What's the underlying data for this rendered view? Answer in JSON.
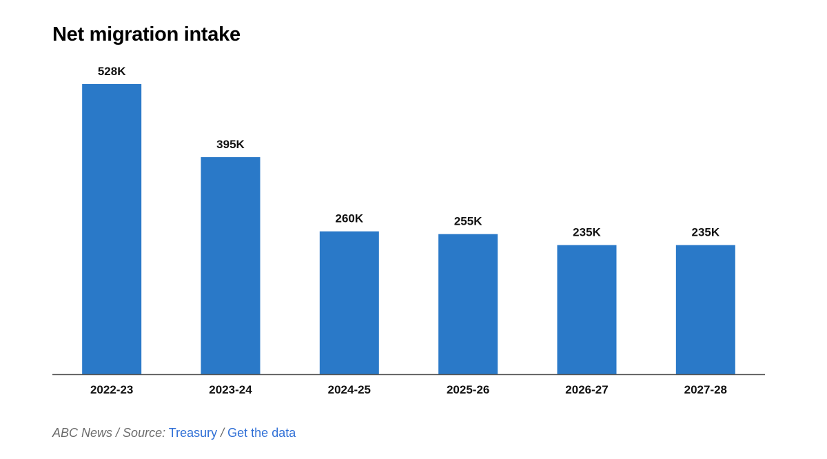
{
  "chart_data": {
    "type": "bar",
    "title": "Net migration intake",
    "categories": [
      "2022-23",
      "2023-24",
      "2024-25",
      "2025-26",
      "2026-27",
      "2027-28"
    ],
    "values": [
      528,
      395,
      260,
      255,
      235,
      235
    ],
    "value_labels": [
      "528K",
      "395K",
      "260K",
      "255K",
      "235K",
      "235K"
    ],
    "unit": "K",
    "xlabel": "",
    "ylabel": "",
    "ylim": [
      0,
      528
    ],
    "grid": false,
    "bar_color": "#2a79c8"
  },
  "footer": {
    "publisher": "ABC News",
    "separator_1": " / ",
    "source_prefix": "Source:",
    "source_link": "Treasury",
    "separator_2": " / ",
    "data_link": "Get the data"
  },
  "colors": {
    "link": "#2f6fd6",
    "axis": "#555555",
    "muted_text": "#6b6b6b"
  }
}
